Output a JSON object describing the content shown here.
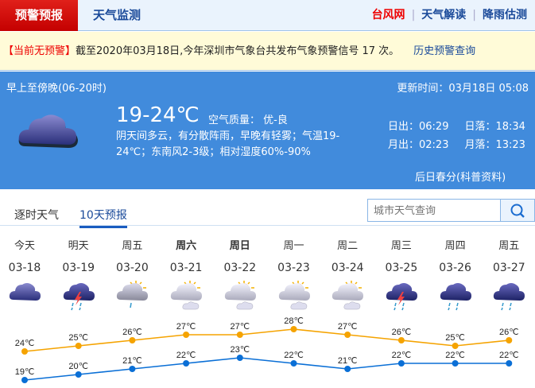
{
  "nav": {
    "active": "预警预报",
    "monitor": "天气监测",
    "typhoon": "台风网",
    "interpret": "天气解读",
    "rain": "降雨估测"
  },
  "warning": {
    "status": "【当前无预警】",
    "text": "截至2020年03月18日,今年深圳市气象台共发布气象预警信号 17 次。",
    "history_link": "历史预警查询"
  },
  "today": {
    "period": "早上至傍晚(06-20时)",
    "updated": "更新时间：03月18日 05:08",
    "temp": "19-24℃",
    "air_quality": "空气质量： 优-良",
    "description": "阴天间多云，有分散阵雨，早晚有轻雾；气温19-24℃；东南风2-3级；相对湿度60%-90%",
    "sunrise": "日出：06:29",
    "sunset": "日落：18:34",
    "moonrise": "月出：02:23",
    "moonset": "月落：13:23",
    "popsci": "后日春分(科普资料)",
    "icon": "cloudy-icon"
  },
  "tabs": [
    {
      "label": "逐时天气"
    },
    {
      "label": "10天预报",
      "active": true
    }
  ],
  "search": {
    "placeholder": "城市天气查询"
  },
  "colors": {
    "high": "#f5a300",
    "low": "#0a6fd6",
    "panel": "#418bdc",
    "active_tab": "#c40000"
  },
  "forecast": [
    {
      "week": "今天",
      "date": "03-18",
      "icon": "cloudy",
      "high": "24℃",
      "low": "19℃"
    },
    {
      "week": "明天",
      "date": "03-19",
      "icon": "thunder-rain",
      "high": "25℃",
      "low": "20℃"
    },
    {
      "week": "周五",
      "date": "03-20",
      "icon": "partly-cloudy-rain",
      "high": "26℃",
      "low": "21℃"
    },
    {
      "week": "周六",
      "date": "03-21",
      "icon": "sun-cloud",
      "high": "27℃",
      "low": "22℃",
      "bold": true
    },
    {
      "week": "周日",
      "date": "03-22",
      "icon": "sun-cloud",
      "high": "27℃",
      "low": "23℃",
      "bold": true
    },
    {
      "week": "周一",
      "date": "03-23",
      "icon": "sun-cloud",
      "high": "28℃",
      "low": "22℃"
    },
    {
      "week": "周二",
      "date": "03-24",
      "icon": "sun-cloud",
      "high": "27℃",
      "low": "21℃"
    },
    {
      "week": "周三",
      "date": "03-25",
      "icon": "thunder-rain",
      "high": "26℃",
      "low": "22℃"
    },
    {
      "week": "周四",
      "date": "03-26",
      "icon": "rain",
      "high": "25℃",
      "low": "22℃"
    },
    {
      "week": "周五",
      "date": "03-27",
      "icon": "rain",
      "high": "26℃",
      "low": "22℃"
    }
  ],
  "chart_data": {
    "type": "line",
    "categories": [
      "03-18",
      "03-19",
      "03-20",
      "03-21",
      "03-22",
      "03-23",
      "03-24",
      "03-25",
      "03-26",
      "03-27"
    ],
    "series": [
      {
        "values": [
          24,
          25,
          26,
          27,
          27,
          28,
          27,
          26,
          25,
          26
        ],
        "color": "#f5a300"
      },
      {
        "values": [
          19,
          20,
          21,
          22,
          23,
          22,
          21,
          22,
          22,
          22
        ],
        "color": "#0a6fd6"
      }
    ]
  }
}
